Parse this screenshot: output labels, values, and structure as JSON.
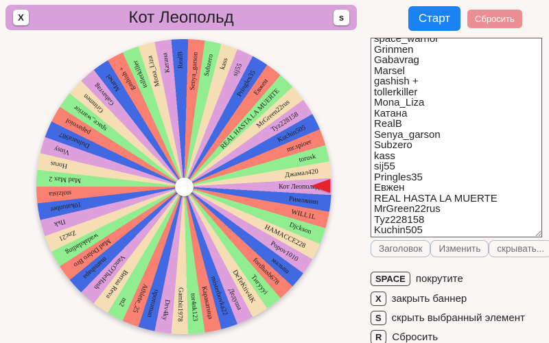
{
  "banner": {
    "title": "Кот Леопольд",
    "close_button": "X",
    "hide_button": "s",
    "bg_color": "#d9a1dc"
  },
  "controls": {
    "start_label": "Старт",
    "start_color": "#1a82f2",
    "reset_label": "Сбросить",
    "reset_color": "#ec8f94"
  },
  "names_list": [
    "space_warrior",
    "Grinmen",
    "Gabavrag",
    "Marsel",
    "gashish +",
    "tollerkiller",
    "Mona_Liza",
    "Катана",
    "RealB",
    "Senya_garson",
    "Subzero",
    "kass",
    "sij55",
    "Pringles35",
    "Евжен",
    "REAL HASTA LA MUERTE",
    "MrGreen22rus",
    "Tyz228158",
    "Kuchin505",
    "mr.spioer",
    "torusk",
    "Джамал420",
    "Кот Леопольд",
    "Римлянин",
    "WILL1L",
    "Djckson",
    "HAMACCE228",
    "Popov1010",
    "малыш",
    "fordhasb678",
    "Тигуууi",
    "DeTeKtiv4iK",
    "Дедуша",
    "misterbovka22",
    "Каракатица",
    "tor4nk123",
    "Gambit1978",
    "Drv4ky",
    "протоman",
    "Athlete_25",
    "m2",
    "Витаа Reva",
    "VancOTheHash",
    "mamshapa",
    "Mad Dobro Bro",
    "wadakdading",
    "Znc21",
    "Пьk",
    "10katunber",
    "stolzista",
    "Mad Max 2",
    "Horus",
    "Vinsy",
    "Dulnara987",
    "papavoiol"
  ],
  "list_actions": {
    "title": "Заголовок",
    "edit": "Изменить",
    "hide": "скрывать..."
  },
  "shortcuts": {
    "spin": {
      "key": "SPACE",
      "label": "покрутите"
    },
    "banner": {
      "key": "X",
      "label": "закрыть баннер"
    },
    "hide": {
      "key": "S",
      "label": "скрыть выбранный элемент"
    },
    "reset": {
      "key": "R",
      "label": "Сбросить"
    }
  },
  "wheel": {
    "pointer_color": "#e8212b",
    "palette": [
      "#DDA0DD",
      "#4169E1",
      "#FA8072",
      "#90EE90",
      "#F5DEB3"
    ],
    "segments": [
      {
        "label": "Кот Леопольд",
        "color": "#DDA0DD"
      },
      {
        "label": "Римлянин",
        "color": "#4169E1"
      },
      {
        "label": "WILL1L",
        "color": "#FA8072"
      },
      {
        "label": "Djckson",
        "color": "#90EE90"
      },
      {
        "label": "HAMACCE228",
        "color": "#F5DEB3"
      },
      {
        "label": "Popov1010",
        "color": "#DDA0DD"
      },
      {
        "label": "малыш",
        "color": "#4169E1"
      },
      {
        "label": "fordhasb678",
        "color": "#FA8072"
      },
      {
        "label": "Тигуууi",
        "color": "#90EE90"
      },
      {
        "label": "DeTeKtiv4iK",
        "color": "#F5DEB3"
      },
      {
        "label": "Дедуша",
        "color": "#DDA0DD"
      },
      {
        "label": "misterbovka22",
        "color": "#4169E1"
      },
      {
        "label": "Каракатица",
        "color": "#FA8072"
      },
      {
        "label": "tor4nk123",
        "color": "#90EE90"
      },
      {
        "label": "Gambit1978",
        "color": "#F5DEB3"
      },
      {
        "label": "Drv4ky",
        "color": "#DDA0DD"
      },
      {
        "label": "протоman",
        "color": "#4169E1"
      },
      {
        "label": "Athlete_25",
        "color": "#FA8072"
      },
      {
        "label": "m2",
        "color": "#90EE90"
      },
      {
        "label": "Витаа Reva",
        "color": "#F5DEB3"
      },
      {
        "label": "VancOTheHash",
        "color": "#DDA0DD"
      },
      {
        "label": "mamshapa",
        "color": "#4169E1"
      },
      {
        "label": "Mad Dobro Bro",
        "color": "#FA8072"
      },
      {
        "label": "wadakdading",
        "color": "#90EE90"
      },
      {
        "label": "Znc21",
        "color": "#F5DEB3"
      },
      {
        "label": "Пьk",
        "color": "#DDA0DD"
      },
      {
        "label": "10katunber",
        "color": "#4169E1"
      },
      {
        "label": "stolzista",
        "color": "#FA8072"
      },
      {
        "label": "Mad Max 2",
        "color": "#90EE90"
      },
      {
        "label": "Horus",
        "color": "#F5DEB3"
      },
      {
        "label": "Vinsy",
        "color": "#DDA0DD"
      },
      {
        "label": "Dulnara987",
        "color": "#4169E1"
      },
      {
        "label": "papavoiol",
        "color": "#FA8072"
      },
      {
        "label": "space_warrior",
        "color": "#90EE90"
      },
      {
        "label": "Grinmen",
        "color": "#F5DEB3"
      },
      {
        "label": "Gabavrag",
        "color": "#DDA0DD"
      },
      {
        "label": "Marsel",
        "color": "#4169E1"
      },
      {
        "label": "gashish +",
        "color": "#FA8072"
      },
      {
        "label": "tollerkiller",
        "color": "#90EE90"
      },
      {
        "label": "Mona_Liza",
        "color": "#F5DEB3"
      },
      {
        "label": "Катана",
        "color": "#DDA0DD"
      },
      {
        "label": "RealB",
        "color": "#4169E1"
      },
      {
        "label": "Senya_garson",
        "color": "#FA8072"
      },
      {
        "label": "Subzero",
        "color": "#90EE90"
      },
      {
        "label": "kass",
        "color": "#F5DEB3"
      },
      {
        "label": "sij55",
        "color": "#DDA0DD"
      },
      {
        "label": "Pringles35",
        "color": "#4169E1"
      },
      {
        "label": "Евжен",
        "color": "#FA8072"
      },
      {
        "label": "REAL HASTA LA MUERTE",
        "color": "#90EE90"
      },
      {
        "label": "MrGreen22rus",
        "color": "#F5DEB3"
      },
      {
        "label": "Tyz228158",
        "color": "#DDA0DD"
      },
      {
        "label": "Kuchin505",
        "color": "#4169E1"
      },
      {
        "label": "mr.spioer",
        "color": "#FA8072"
      },
      {
        "label": "torusk",
        "color": "#90EE90"
      },
      {
        "label": "Джамал420",
        "color": "#F5DEB3"
      }
    ]
  }
}
